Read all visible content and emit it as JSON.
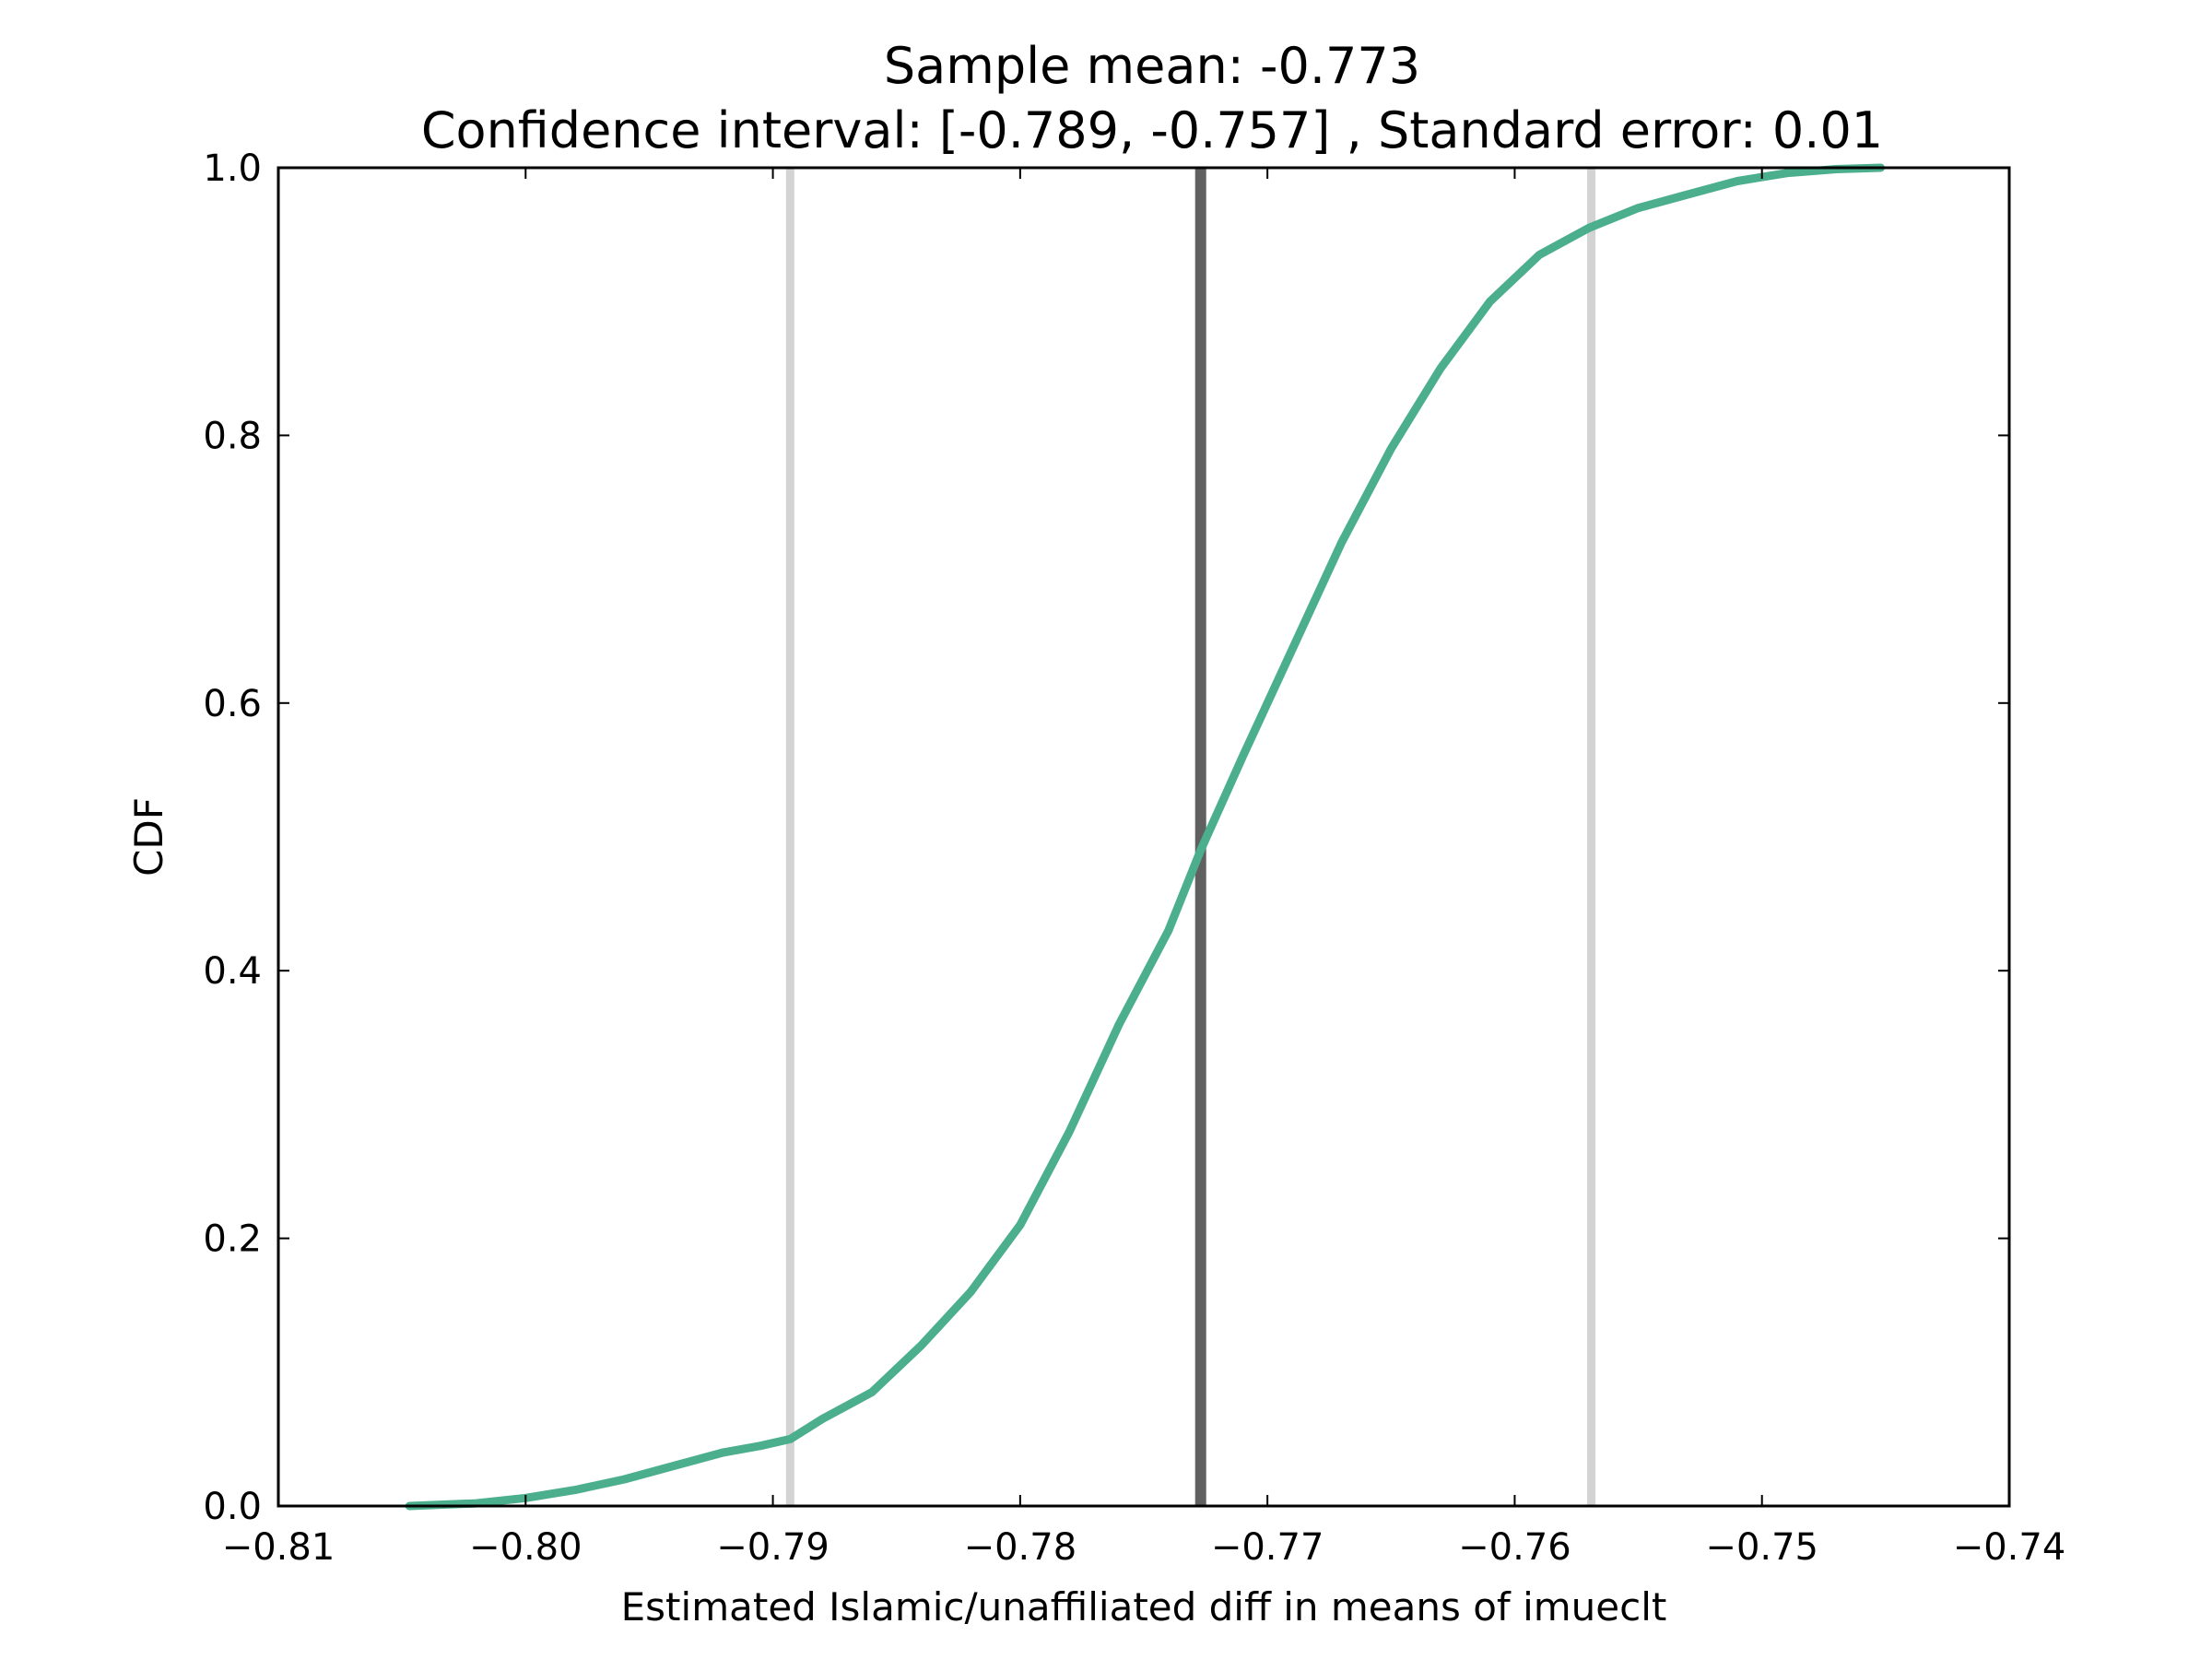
{
  "chart_data": {
    "type": "line",
    "title": "Sample mean: -0.773",
    "subtitle": "Confidence interval: [-0.789, -0.757] , Standard error: 0.01",
    "xlabel": "Estimated Islamic/unaffiliated diff in means of imueclt",
    "ylabel": "CDF",
    "xlim": [
      -0.81,
      -0.74
    ],
    "ylim": [
      0.0,
      1.0
    ],
    "x_ticks": [
      -0.81,
      -0.8,
      -0.79,
      -0.78,
      -0.77,
      -0.76,
      -0.75,
      -0.74
    ],
    "x_tick_labels": [
      "−0.81",
      "−0.80",
      "−0.79",
      "−0.78",
      "−0.77",
      "−0.76",
      "−0.75",
      "−0.74"
    ],
    "y_ticks": [
      0.0,
      0.2,
      0.4,
      0.6,
      0.8,
      1.0
    ],
    "y_tick_labels": [
      "0.0",
      "0.2",
      "0.4",
      "0.6",
      "0.8",
      "1.0"
    ],
    "grid": false,
    "legend": "none",
    "vertical_lines": [
      {
        "x": -0.7893,
        "role": "ci-lower",
        "color": "#d3d3d3"
      },
      {
        "x": -0.7727,
        "role": "mean",
        "color": "#606060"
      },
      {
        "x": -0.7569,
        "role": "ci-upper",
        "color": "#d3d3d3"
      }
    ],
    "series": [
      {
        "color": "#4bae8c",
        "x": [
          -0.8047,
          -0.802,
          -0.8,
          -0.798,
          -0.796,
          -0.794,
          -0.792,
          -0.7905,
          -0.7893,
          -0.788,
          -0.786,
          -0.784,
          -0.782,
          -0.78,
          -0.778,
          -0.776,
          -0.774,
          -0.7727,
          -0.771,
          -0.769,
          -0.767,
          -0.765,
          -0.763,
          -0.761,
          -0.759,
          -0.757,
          -0.755,
          -0.753,
          -0.751,
          -0.749,
          -0.747,
          -0.7452
        ],
        "y": [
          0.0,
          0.002,
          0.006,
          0.012,
          0.02,
          0.03,
          0.04,
          0.045,
          0.05,
          0.065,
          0.085,
          0.12,
          0.16,
          0.21,
          0.28,
          0.36,
          0.43,
          0.49,
          0.56,
          0.64,
          0.72,
          0.79,
          0.85,
          0.9,
          0.935,
          0.955,
          0.97,
          0.98,
          0.99,
          0.996,
          0.999,
          1.0
        ]
      }
    ]
  }
}
